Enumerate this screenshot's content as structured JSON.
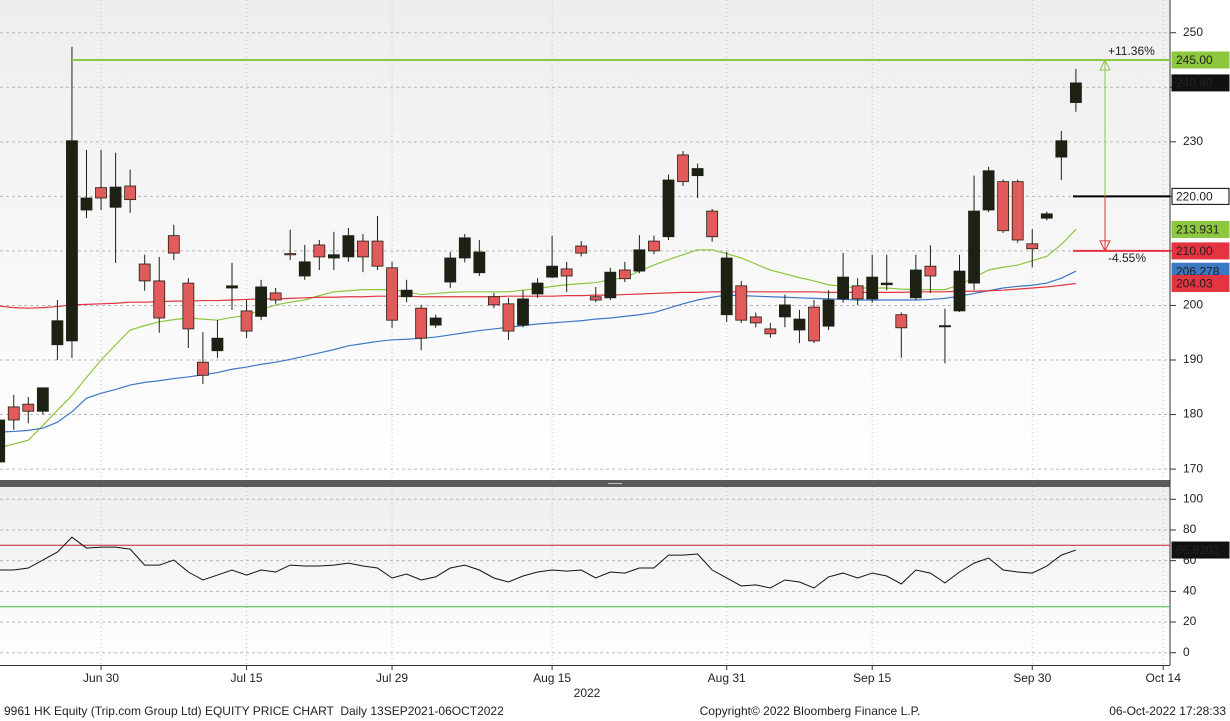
{
  "chart_data": [
    {
      "type": "candlestick",
      "categories": [
        null,
        null,
        null,
        null,
        null,
        null,
        null,
        "Jun 30",
        null,
        null,
        null,
        null,
        null,
        null,
        null,
        null,
        null,
        "Jul 15",
        null,
        null,
        null,
        null,
        null,
        null,
        null,
        null,
        null,
        "Jul 29",
        null,
        null,
        null,
        null,
        null,
        null,
        null,
        null,
        null,
        null,
        "Aug 15",
        null,
        null,
        null,
        null,
        null,
        null,
        null,
        null,
        null,
        null,
        null,
        "Aug 31",
        null,
        null,
        null,
        null,
        null,
        null,
        null,
        null,
        null,
        "Sep 15",
        null,
        null,
        null,
        null,
        null,
        null,
        null,
        null,
        null,
        null,
        "Sep 30",
        null,
        null,
        null,
        null,
        null,
        null,
        null,
        null,
        "Oct 14"
      ],
      "open": [
        171.3,
        181.4,
        181.9,
        180.6,
        192.8,
        193.5,
        217.5,
        221.6,
        218,
        221.9,
        207.6,
        204.5,
        212.8,
        204.1,
        189.6,
        191.7,
        203.2,
        199,
        198,
        202.3,
        209.5,
        205.4,
        211.1,
        208.7,
        208.9,
        211.8,
        211.8,
        206.9,
        201.6,
        199.5,
        196.4,
        204.3,
        208.7,
        206,
        201.6,
        200.3,
        196.4,
        202.1,
        205.2,
        206.7,
        210.9,
        201.6,
        201.4,
        206.5,
        206.3,
        211.8,
        212.6,
        227.6,
        223.8,
        217.3,
        198.3,
        203.6,
        197.9,
        195.7,
        197.9,
        195.5,
        199.7,
        196.2,
        201.2,
        203.6,
        201.2,
        203.8,
        198.3,
        201.4,
        207.2,
        196.1,
        199,
        204.1,
        217.5,
        222.7,
        222.7,
        211.3,
        216,
        227.2,
        237.2,
        null,
        null,
        null,
        null,
        null,
        null
      ],
      "high": [
        179.5,
        183.6,
        183.2,
        184.9,
        201,
        247.4,
        228.5,
        228.5,
        228,
        224.9,
        209.3,
        208.9,
        214.8,
        205,
        195.1,
        197.3,
        207.8,
        201,
        204.7,
        203.2,
        213.9,
        211.1,
        212,
        213.5,
        214.2,
        213.1,
        216.4,
        208,
        204.7,
        200.1,
        198.3,
        209.8,
        213.1,
        212,
        202.3,
        201.4,
        202.8,
        205,
        212.8,
        208,
        211.8,
        203.4,
        206.9,
        208,
        212.9,
        212.8,
        224,
        228.3,
        226,
        217.7,
        209.8,
        204.5,
        198.7,
        196.8,
        202,
        199.2,
        201,
        202.8,
        209.6,
        205,
        209.3,
        209.3,
        198.7,
        209.3,
        211,
        199.4,
        209.3,
        223.8,
        225.4,
        223.1,
        223.1,
        214,
        217.2,
        232,
        243.4,
        null,
        null,
        null,
        null,
        null,
        null
      ],
      "low": [
        171,
        177.2,
        178.4,
        180,
        190,
        190.4,
        216,
        217.5,
        207.8,
        217,
        202.7,
        195,
        208.3,
        192.2,
        185.6,
        190.4,
        199.2,
        194,
        197.3,
        200.3,
        208.3,
        204.7,
        206.5,
        206.5,
        208,
        206.1,
        206.5,
        195.9,
        200.6,
        191.8,
        195.9,
        203.2,
        207.9,
        205.4,
        199.5,
        193.7,
        196,
        201.4,
        205,
        202.5,
        209,
        200.6,
        201,
        204.3,
        205.9,
        209.4,
        212,
        221.9,
        219.7,
        211.7,
        197,
        196.8,
        196,
        194.1,
        196,
        193.1,
        193.1,
        195.5,
        200.5,
        200.1,
        200.5,
        202.8,
        190.4,
        201,
        202.3,
        189.4,
        198.8,
        202.8,
        217.1,
        213.3,
        211.5,
        207,
        215.6,
        223,
        235.5,
        null,
        null,
        null,
        null,
        null,
        null
      ],
      "close": [
        179,
        179,
        180.6,
        184.9,
        197.2,
        230.2,
        219.7,
        219.7,
        221.7,
        219.4,
        204.5,
        197.7,
        209.6,
        195.7,
        187.2,
        194,
        203.6,
        195.3,
        203.4,
        201,
        209.3,
        208,
        208.9,
        209.3,
        212.8,
        208.9,
        207.2,
        197.3,
        202.8,
        194,
        197.7,
        208.7,
        212.4,
        209.8,
        200.1,
        195.3,
        201.2,
        204.1,
        207.2,
        205.4,
        209.6,
        201,
        206.1,
        204.9,
        210.2,
        210,
        223,
        222.7,
        225.1,
        212.6,
        208.7,
        197.3,
        196.8,
        194.8,
        200.1,
        197.5,
        193.5,
        201,
        205.2,
        201.2,
        205.2,
        204.1,
        195.9,
        206.5,
        205.4,
        196.3,
        206.3,
        217.3,
        224.7,
        213.7,
        212,
        210.4,
        216.8,
        230.2,
        240.8,
        null,
        null,
        null,
        null,
        null,
        null
      ],
      "last_close_label": "240.80",
      "up_color": "#1d2114",
      "down_color": "#e25b5b",
      "series": [
        {
          "color": "#8dc63f",
          "tag_text": "#000000",
          "values": [
            173.9,
            174.6,
            175.3,
            178,
            180.8,
            183.5,
            186.8,
            190,
            192.8,
            195.5,
            196.3,
            197,
            197.4,
            197.7,
            197.5,
            197.3,
            197.8,
            198.2,
            199.2,
            200.1,
            200.6,
            201,
            201.8,
            202.5,
            202.7,
            202.9,
            202.9,
            202.9,
            202.5,
            202,
            202.2,
            202.4,
            202.5,
            202.5,
            202.5,
            202.5,
            202.8,
            203.1,
            203.5,
            203.8,
            204,
            204.2,
            204.7,
            205.1,
            206.3,
            207.4,
            208.4,
            209.3,
            210.2,
            210.2,
            209.5,
            208.7,
            207.6,
            206.5,
            205.8,
            205.1,
            204.5,
            203.8,
            203.5,
            203.2,
            203.2,
            203.2,
            203,
            202.9,
            202.9,
            202.9,
            203.8,
            205.1,
            206.5,
            207,
            207.4,
            208.2,
            209,
            211.2,
            213.931,
            null,
            null,
            null,
            null,
            null,
            null
          ]
        },
        {
          "color": "#3d78c4",
          "tag_text": "#ffffff",
          "values": [
            176.8,
            176.9,
            177.1,
            177.5,
            178.6,
            180.5,
            183,
            183.9,
            184.6,
            185.4,
            185.9,
            186.2,
            186.6,
            186.9,
            187.3,
            187.7,
            188.3,
            188.7,
            189.2,
            189.6,
            190.1,
            190.7,
            191.3,
            191.9,
            192.6,
            193,
            193.4,
            193.7,
            193.8,
            194,
            194.2,
            194.6,
            195,
            195.4,
            195.7,
            196,
            196.3,
            196.6,
            196.8,
            197,
            197.2,
            197.5,
            197.7,
            198,
            198.3,
            198.7,
            199.5,
            200.3,
            201,
            201.5,
            201.9,
            201.8,
            201.7,
            201.6,
            201.5,
            201.4,
            201.3,
            201.2,
            201.1,
            201,
            201,
            201,
            201,
            201,
            201.1,
            201.3,
            201.7,
            202.2,
            202.7,
            203.2,
            203.5,
            203.7,
            204.1,
            205,
            206.278,
            null,
            null,
            null,
            null,
            null,
            null
          ]
        },
        {
          "color": "#e3343f",
          "tag_text": "#000000",
          "values": [
            199.9,
            199.6,
            199.5,
            199.6,
            199.8,
            200.1,
            200.2,
            200.3,
            200.4,
            200.6,
            200.6,
            200.7,
            200.8,
            200.8,
            200.9,
            200.9,
            201,
            201.1,
            201.2,
            201.2,
            201.3,
            201.4,
            201.5,
            201.5,
            201.6,
            201.6,
            201.7,
            201.7,
            201.7,
            201.6,
            201.6,
            201.6,
            201.6,
            201.6,
            201.6,
            201.7,
            201.7,
            201.7,
            201.7,
            201.8,
            201.8,
            201.9,
            201.9,
            202,
            202.1,
            202.2,
            202.3,
            202.4,
            202.4,
            202.5,
            202.5,
            202.5,
            202.5,
            202.5,
            202.5,
            202.5,
            202.5,
            202.4,
            202.4,
            202.4,
            202.4,
            202.4,
            202.4,
            202.5,
            202.5,
            202.5,
            202.6,
            202.6,
            202.7,
            202.8,
            203,
            203.2,
            203.4,
            203.7,
            204.03,
            null,
            null,
            null,
            null,
            null,
            null
          ]
        }
      ],
      "hlines": [
        {
          "value": 245,
          "label": "245.00",
          "color": "#8dc63f",
          "tag_fill": "#8dc63f",
          "tag_text": "#000000",
          "from": "peak"
        },
        {
          "value": 220,
          "label": "220.00",
          "color": "#000000",
          "tag_fill": "#ffffff",
          "tag_text": "#000000",
          "from": "recent"
        },
        {
          "value": 210,
          "label": "210.00",
          "color": "#e3343f",
          "tag_fill": "#e3343f",
          "tag_text": "#ffffff",
          "from": "recent"
        }
      ],
      "measures": [
        {
          "from": 220,
          "to": 245,
          "label": "+11.36%",
          "color": "#8dc63f"
        },
        {
          "from": 220,
          "to": 210,
          "label": "-4.55%",
          "color": "#e3343f"
        }
      ],
      "ylim": [
        168,
        256
      ],
      "yticks": [
        170,
        180,
        190,
        200,
        210,
        220,
        230,
        240,
        250
      ],
      "grid": true
    },
    {
      "type": "line",
      "color": "#111111",
      "values": [
        53.9,
        53.9,
        55.2,
        60.4,
        65.6,
        75.3,
        68.2,
        68.8,
        68.8,
        67.5,
        57.1,
        57.1,
        60.4,
        52.6,
        47.4,
        50.6,
        53.9,
        50.6,
        53.9,
        52.6,
        57.1,
        56.5,
        56.5,
        57.1,
        58.4,
        56.5,
        55.2,
        48.7,
        51.3,
        47.4,
        49.4,
        55.2,
        57.1,
        53.9,
        48.7,
        46.1,
        50,
        52.6,
        53.9,
        53.2,
        53.9,
        48.7,
        52.6,
        51.9,
        55.2,
        55.2,
        63.6,
        63.6,
        64.3,
        53.9,
        48.7,
        43.5,
        44.2,
        42.2,
        47.4,
        46.1,
        42.2,
        49.4,
        51.9,
        48.7,
        51.9,
        50,
        44.8,
        53.9,
        51.9,
        45.5,
        52.6,
        58.4,
        61.7,
        53.9,
        52.6,
        51.9,
        56.5,
        63.6,
        66.9202,
        null,
        null,
        null,
        null,
        null,
        null
      ],
      "hlines": [
        {
          "value": 70,
          "color": "#c0202a"
        },
        {
          "value": 30,
          "color": "#3cc03c"
        }
      ],
      "ylim": [
        -8,
        108
      ],
      "yticks": [
        0,
        20,
        40,
        60,
        80,
        100
      ],
      "grid": true
    }
  ],
  "axis_year": "2022",
  "footer": {
    "left": "9961 HK Equity (Trip.com Group Ltd) EQUITY PRICE CHART  Daily 13SEP2021-06OCT2022",
    "center": "Copyright© 2022 Bloomberg Finance L.P.",
    "right": "06-Oct-2022 17:28:33"
  }
}
